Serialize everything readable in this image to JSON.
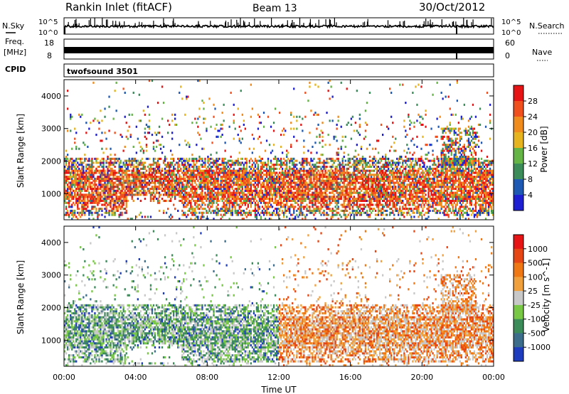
{
  "header": {
    "title": "Rankin Inlet (fitACF)",
    "beam": "Beam 13",
    "date": "30/Oct/2012"
  },
  "strips": {
    "nsky_label": "N.Sky",
    "nsky_tick_top": "10^5",
    "nsky_tick_bottom": "10^0",
    "nsearch_label": "N.Search",
    "nsearch_tick_top": "10^5",
    "nsearch_tick_bottom": "10^0",
    "freq_label": "Freq.",
    "freq_unit": "[MHz]",
    "freq_tick_top": "18",
    "freq_tick_bottom": "8",
    "nave_label": "Nave",
    "nave_tick_top": "60",
    "nave_tick_bottom": "0",
    "cpid_label": "CPID",
    "cpid_value": "twofsound 3501"
  },
  "chart_data": [
    {
      "type": "heatmap",
      "name": "power",
      "ylabel": "Slant Range [km]",
      "ylim": [
        200,
        4500
      ],
      "xlim": [
        0,
        24
      ],
      "y_ticks": [
        1000,
        2000,
        3000,
        4000
      ],
      "x_ticks": [
        "00:00",
        "04:00",
        "08:00",
        "12:00",
        "16:00",
        "20:00",
        "00:00"
      ],
      "colorbar_label": "Power [dB]",
      "colorbar_ticks": [
        "4",
        "8",
        "12",
        "16",
        "20",
        "24",
        "28"
      ],
      "colorbar_colors": [
        "#1e1ed2",
        "#1e5ab4",
        "#3c8c5a",
        "#64b446",
        "#e6b41e",
        "#f08c1e",
        "#f0501e",
        "#e61414"
      ]
    },
    {
      "type": "heatmap",
      "name": "velocity",
      "ylabel": "Slant Range [km]",
      "xlabel": "Time UT",
      "ylim": [
        200,
        4500
      ],
      "xlim": [
        0,
        24
      ],
      "y_ticks": [
        1000,
        2000,
        3000,
        4000
      ],
      "x_ticks": [
        "00:00",
        "04:00",
        "08:00",
        "12:00",
        "16:00",
        "20:00",
        "00:00"
      ],
      "colorbar_label": "Velocity [m s^-1]",
      "colorbar_ticks": [
        "1000",
        "500",
        "100",
        "25",
        "-25",
        "-100",
        "-500",
        "-1000"
      ],
      "colorbar_colors": [
        "#1e3cbe",
        "#3c6e8c",
        "#3c8c5a",
        "#78c846",
        "#c8c8c8",
        "#f0a03c",
        "#f07814",
        "#e64614",
        "#e61414"
      ]
    }
  ]
}
